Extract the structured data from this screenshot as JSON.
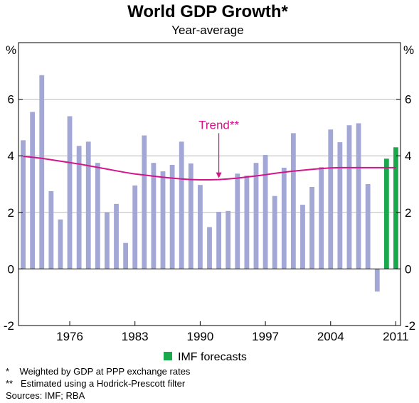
{
  "colors": {
    "history_bar": "#a3a7d6",
    "forecast_bar": "#1aa84c",
    "trend": "#d4148a",
    "grid": "#b9b9b9",
    "axis": "#000000"
  },
  "chart_data": {
    "type": "bar",
    "title": "World GDP Growth*",
    "subtitle": "Year-average",
    "ylabel_left": "%",
    "ylabel_right": "%",
    "ylim": [
      -2,
      8
    ],
    "yticks": [
      -2,
      0,
      2,
      4,
      6
    ],
    "ytick_labels": [
      "-2",
      "0",
      "2",
      "4",
      "6"
    ],
    "xlim": [
      1970.5,
      2011.5
    ],
    "xticks": [
      1976,
      1983,
      1990,
      1997,
      2004,
      2011
    ],
    "xtick_labels": [
      "1976",
      "1983",
      "1990",
      "1997",
      "2004",
      "2011"
    ],
    "grid": true,
    "series": [
      {
        "type": "bar",
        "x": [
          1971,
          1972,
          1973,
          1974,
          1975,
          1976,
          1977,
          1978,
          1979,
          1980,
          1981,
          1982,
          1983,
          1984,
          1985,
          1986,
          1987,
          1988,
          1989,
          1990,
          1991,
          1992,
          1993,
          1994,
          1995,
          1996,
          1997,
          1998,
          1999,
          2000,
          2001,
          2002,
          2003,
          2004,
          2005,
          2006,
          2007,
          2008,
          2009
        ],
        "values": [
          4.55,
          5.55,
          6.85,
          2.75,
          1.75,
          5.4,
          4.35,
          4.5,
          3.75,
          2.0,
          2.3,
          0.92,
          2.95,
          4.72,
          3.75,
          3.45,
          3.68,
          4.5,
          3.73,
          2.97,
          1.48,
          2.02,
          2.05,
          3.37,
          3.3,
          3.75,
          4.03,
          2.58,
          3.58,
          4.8,
          2.27,
          2.9,
          3.6,
          4.93,
          4.48,
          5.08,
          5.15,
          3.0,
          -0.8
        ]
      },
      {
        "name": "IMF forecasts",
        "type": "bar",
        "x": [
          2010,
          2011
        ],
        "values": [
          3.9,
          4.3
        ]
      },
      {
        "name": "Trend**",
        "type": "line",
        "x": [
          1971,
          1972,
          1973,
          1974,
          1975,
          1976,
          1977,
          1978,
          1979,
          1980,
          1981,
          1982,
          1983,
          1984,
          1985,
          1986,
          1987,
          1988,
          1989,
          1990,
          1991,
          1992,
          1993,
          1994,
          1995,
          1996,
          1997,
          1998,
          1999,
          2000,
          2001,
          2002,
          2003,
          2004,
          2005,
          2006,
          2007,
          2008,
          2009,
          2010,
          2011
        ],
        "values": [
          3.98,
          3.95,
          3.91,
          3.86,
          3.81,
          3.76,
          3.71,
          3.65,
          3.59,
          3.53,
          3.47,
          3.41,
          3.36,
          3.32,
          3.28,
          3.24,
          3.21,
          3.18,
          3.16,
          3.15,
          3.15,
          3.16,
          3.18,
          3.21,
          3.25,
          3.29,
          3.33,
          3.38,
          3.42,
          3.46,
          3.49,
          3.52,
          3.55,
          3.57,
          3.58,
          3.58,
          3.58,
          3.58,
          3.58,
          3.58,
          3.58
        ]
      }
    ],
    "annotations": [
      {
        "text": "Trend**",
        "arrow_to_x": 1992,
        "arrow_to_y": 3.16
      }
    ],
    "legend": {
      "items": [
        "IMF forecasts"
      ],
      "position": "bottom-center"
    },
    "notes": [
      "*    Weighted by GDP at PPP exchange rates",
      "**   Estimated using a Hodrick-Prescott filter",
      "Sources: IMF; RBA"
    ]
  }
}
